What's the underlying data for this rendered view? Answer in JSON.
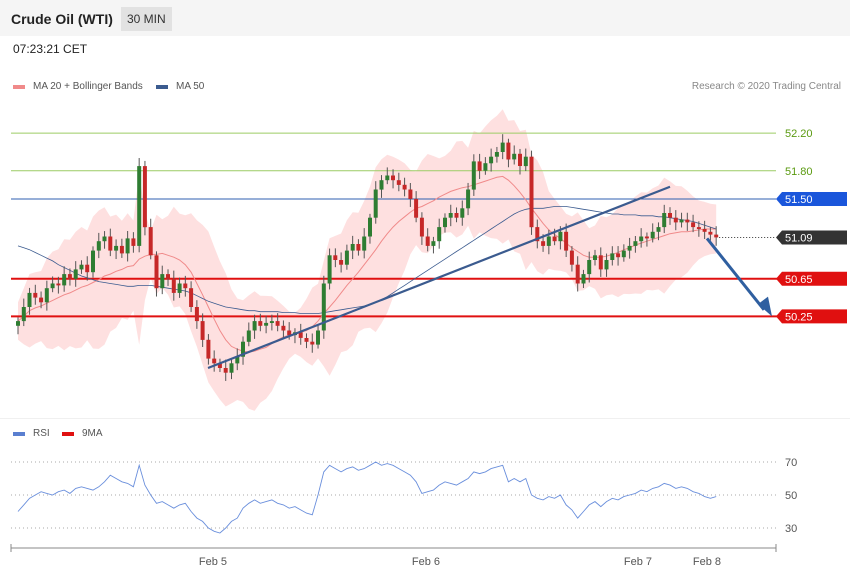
{
  "header": {
    "title": "Crude Oil (WTI)",
    "timeframe": "30 MIN",
    "time": "07:23:21 CET"
  },
  "legend": {
    "ma20": {
      "label": "MA 20 + Bollinger Bands",
      "color": "#f08a8a"
    },
    "ma50": {
      "label": "MA 50",
      "color": "#3b5b8f"
    },
    "credit": "Research © 2020 Trading Central"
  },
  "rsi_legend": {
    "rsi": {
      "label": "RSI",
      "color": "#5a7fd0"
    },
    "ma9": {
      "label": "9MA",
      "color": "#e01010"
    }
  },
  "chart_data": [
    {
      "type": "candlestick",
      "ylim": [
        49.2,
        52.5
      ],
      "x_labels": [
        "Feb 5",
        "Feb 6",
        "Feb 7",
        "Feb 8"
      ],
      "current_price": "51.09",
      "levels": [
        {
          "value": 52.2,
          "label": "52.20",
          "kind": "target"
        },
        {
          "value": 51.8,
          "label": "51.80",
          "kind": "target"
        },
        {
          "value": 51.5,
          "label": "51.50",
          "kind": "pivot"
        },
        {
          "value": 50.65,
          "label": "50.65",
          "kind": "support"
        },
        {
          "value": 50.25,
          "label": "50.25",
          "kind": "support"
        }
      ],
      "close": [
        50.2,
        50.35,
        50.5,
        50.45,
        50.4,
        50.55,
        50.6,
        50.58,
        50.7,
        50.65,
        50.75,
        50.8,
        50.72,
        50.95,
        51.05,
        51.1,
        50.95,
        51.0,
        50.92,
        51.08,
        51.0,
        51.85,
        51.2,
        50.9,
        50.55,
        50.7,
        50.65,
        50.5,
        50.6,
        50.55,
        50.35,
        50.2,
        50.0,
        49.8,
        49.75,
        49.7,
        49.65,
        49.75,
        49.82,
        49.98,
        50.1,
        50.2,
        50.15,
        50.18,
        50.2,
        50.15,
        50.1,
        50.05,
        50.08,
        50.02,
        49.98,
        49.95,
        50.1,
        50.6,
        50.9,
        50.85,
        50.8,
        50.95,
        51.02,
        50.95,
        51.1,
        51.3,
        51.6,
        51.7,
        51.75,
        51.7,
        51.65,
        51.6,
        51.5,
        51.3,
        51.1,
        51.0,
        51.05,
        51.2,
        51.3,
        51.35,
        51.3,
        51.4,
        51.6,
        51.9,
        51.8,
        51.88,
        51.95,
        52.0,
        52.1,
        51.92,
        51.98,
        51.85,
        51.95,
        51.2,
        51.05,
        51.0,
        51.1,
        51.05,
        51.15,
        50.95,
        50.8,
        50.6,
        50.7,
        50.85,
        50.9,
        50.75,
        50.85,
        50.92,
        50.88,
        50.95,
        51.0,
        51.05,
        51.1,
        51.08,
        51.15,
        51.2,
        51.35,
        51.3,
        51.25,
        51.28,
        51.25,
        51.2,
        51.18,
        51.15,
        51.12,
        51.09
      ],
      "ma20": [
        50.2,
        50.25,
        50.31,
        50.34,
        50.36,
        50.39,
        50.42,
        50.45,
        50.48,
        50.5,
        50.53,
        50.56,
        50.58,
        50.61,
        50.64,
        50.68,
        50.7,
        50.73,
        50.75,
        50.78,
        50.79,
        50.86,
        50.89,
        50.91,
        50.91,
        50.92,
        50.9,
        50.88,
        50.85,
        50.8,
        50.72,
        50.6,
        50.48,
        50.35,
        50.22,
        50.1,
        50.0,
        49.93,
        49.9,
        49.88,
        49.87,
        49.88,
        49.9,
        49.92,
        49.96,
        50.0,
        50.03,
        50.05,
        50.07,
        50.08,
        50.1,
        50.14,
        50.2,
        50.28,
        50.35,
        50.42,
        50.5,
        50.58,
        50.65,
        50.72,
        50.8,
        50.88,
        50.96,
        51.05,
        51.13,
        51.2,
        51.26,
        51.31,
        51.36,
        51.4,
        51.42,
        51.45,
        51.48,
        51.52,
        51.55,
        51.58,
        51.6,
        51.62,
        51.63,
        51.65,
        51.67,
        51.69,
        51.71,
        51.73,
        51.74,
        51.7,
        51.64,
        51.57,
        51.49,
        51.4,
        51.32,
        51.24,
        51.17,
        51.12,
        51.08,
        51.03,
        50.98,
        50.94,
        50.9,
        50.88,
        50.88,
        50.88,
        50.89,
        50.91,
        50.93,
        50.96,
        50.98,
        51.01,
        51.03,
        51.05,
        51.07,
        51.09,
        51.11,
        51.13,
        51.14,
        51.15,
        51.15,
        51.16,
        51.17,
        51.18,
        51.18,
        51.18
      ],
      "ma50": [
        51.0,
        50.98,
        50.96,
        50.93,
        50.9,
        50.87,
        50.84,
        50.8,
        50.77,
        50.74,
        50.71,
        50.68,
        50.66,
        50.64,
        50.62,
        50.61,
        50.6,
        50.59,
        50.58,
        50.57,
        50.57,
        50.58,
        50.58,
        50.58,
        50.57,
        50.56,
        50.55,
        50.54,
        50.53,
        50.52,
        50.5,
        50.47,
        50.44,
        50.41,
        50.39,
        50.37,
        50.35,
        50.34,
        50.33,
        50.32,
        50.31,
        50.31,
        50.3,
        50.3,
        50.3,
        50.3,
        50.29,
        50.29,
        50.29,
        50.28,
        50.28,
        50.28,
        50.28,
        50.29,
        50.3,
        50.31,
        50.32,
        50.33,
        50.34,
        50.35,
        50.36,
        50.38,
        50.4,
        50.43,
        50.46,
        50.5,
        50.54,
        50.58,
        50.62,
        50.66,
        50.7,
        50.74,
        50.78,
        50.82,
        50.86,
        50.9,
        50.94,
        50.98,
        51.02,
        51.06,
        51.1,
        51.14,
        51.18,
        51.22,
        51.26,
        51.3,
        51.34,
        51.37,
        51.39,
        51.4,
        51.4,
        51.4,
        51.41,
        51.42,
        51.42,
        51.42,
        51.41,
        51.4,
        51.39,
        51.38,
        51.37,
        51.36,
        51.35,
        51.34,
        51.34,
        51.33,
        51.33,
        51.33,
        51.32,
        51.32,
        51.32,
        51.31,
        51.31,
        51.3,
        51.29,
        51.28,
        51.27,
        51.26,
        51.24,
        51.22,
        51.2,
        51.18
      ]
    },
    {
      "type": "line",
      "title": "RSI",
      "ylim": [
        22,
        78
      ],
      "y_ticks": [
        30,
        50,
        70
      ],
      "rsi": [
        40,
        44,
        48,
        50,
        52,
        51,
        50,
        52,
        53,
        51,
        54,
        55,
        54,
        53,
        55,
        58,
        62,
        60,
        58,
        57,
        55,
        68,
        56,
        50,
        45,
        46,
        44,
        42,
        44,
        45,
        40,
        36,
        34,
        30,
        28,
        27,
        30,
        34,
        36,
        42,
        45,
        47,
        45,
        46,
        47,
        45,
        44,
        42,
        43,
        41,
        39,
        38,
        50,
        64,
        68,
        66,
        64,
        66,
        67,
        65,
        66,
        68,
        70,
        68,
        69,
        68,
        66,
        64,
        62,
        58,
        51,
        52,
        53,
        56,
        58,
        57,
        56,
        58,
        60,
        64,
        63,
        64,
        66,
        67,
        68,
        58,
        60,
        58,
        60,
        50,
        48,
        47,
        49,
        48,
        50,
        44,
        41,
        36,
        40,
        44,
        46,
        43,
        46,
        48,
        47,
        49,
        50,
        51,
        53,
        52,
        54,
        55,
        57,
        56,
        54,
        55,
        54,
        52,
        51,
        49,
        48,
        49
      ]
    }
  ]
}
